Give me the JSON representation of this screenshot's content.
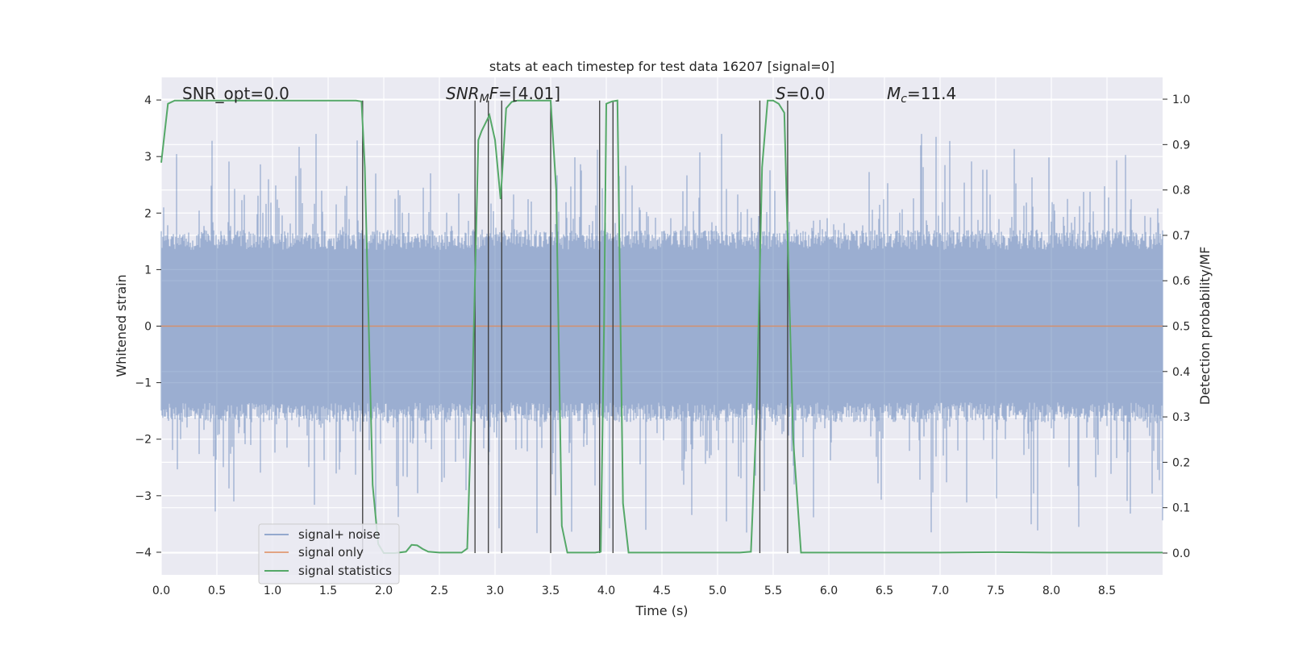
{
  "chart_data": {
    "type": "line",
    "title": "stats at each timestep for test data 16207 [signal=0]",
    "xlabel": "Time (s)",
    "ylabel": "Whitened strain",
    "y2label": "Detection probability/MF",
    "xlim": [
      0.0,
      9.0
    ],
    "ylim": [
      -4.4,
      4.4
    ],
    "y2lim": [
      -0.048,
      1.048
    ],
    "x_ticks": [
      "0.0",
      "0.5",
      "1.0",
      "1.5",
      "2.0",
      "2.5",
      "3.0",
      "3.5",
      "4.0",
      "4.5",
      "5.0",
      "5.5",
      "6.0",
      "6.5",
      "7.0",
      "7.5",
      "8.0",
      "8.5"
    ],
    "y_ticks": [
      "4",
      "3",
      "2",
      "1",
      "0",
      "−1",
      "−2",
      "−3",
      "−4"
    ],
    "y2_ticks": [
      "1.0",
      "0.9",
      "0.8",
      "0.7",
      "0.6",
      "0.5",
      "0.4",
      "0.3",
      "0.2",
      "0.1",
      "0.0"
    ],
    "grid": true,
    "legend_position": "lower-left",
    "colors": {
      "background": "#eaeaf2",
      "grid": "#ffffff",
      "noise": "#4c72b0",
      "signal": "#dd8452",
      "stats": "#55a868",
      "vlines": "#3a3a3a"
    },
    "annotations": [
      {
        "parts": [
          {
            "t": "SNR_opt=0.0",
            "i": false
          }
        ]
      },
      {
        "parts": [
          {
            "t": "SNR",
            "i": true
          },
          {
            "t": "M",
            "i": true,
            "sub": true
          },
          {
            "t": "F",
            "i": true
          },
          {
            "t": "=[4.01]",
            "i": false
          }
        ]
      },
      {
        "parts": [
          {
            "t": "S",
            "i": true
          },
          {
            "t": "=0.0",
            "i": false
          }
        ]
      },
      {
        "parts": [
          {
            "t": "M",
            "i": true
          },
          {
            "t": "c",
            "i": true,
            "sub": true
          },
          {
            "t": "=11.4",
            "i": false
          }
        ]
      }
    ],
    "series": [
      {
        "name": "signal+ noise",
        "axis": "left",
        "kind": "noise",
        "approx_range": [
          -3.7,
          3.4
        ],
        "x_range": [
          0.0,
          9.0
        ]
      },
      {
        "name": "signal only",
        "axis": "left",
        "kind": "flat",
        "x": [
          0.0,
          9.0
        ],
        "y": [
          0.0,
          0.0
        ]
      },
      {
        "name": "signal statistics",
        "axis": "right",
        "x": [
          0.0,
          0.06,
          0.12,
          0.3,
          0.6,
          1.0,
          1.5,
          1.75,
          1.8,
          1.83,
          1.9,
          1.95,
          2.0,
          2.1,
          2.2,
          2.25,
          2.3,
          2.35,
          2.4,
          2.5,
          2.6,
          2.7,
          2.75,
          2.8,
          2.85,
          2.88,
          2.95,
          3.0,
          3.05,
          3.1,
          3.15,
          3.2,
          3.3,
          3.4,
          3.5,
          3.55,
          3.6,
          3.65,
          3.7,
          3.8,
          3.9,
          3.95,
          3.98,
          4.0,
          4.05,
          4.1,
          4.15,
          4.2,
          4.3,
          4.5,
          5.0,
          5.2,
          5.3,
          5.35,
          5.4,
          5.45,
          5.5,
          5.55,
          5.6,
          5.63,
          5.68,
          5.75,
          5.85,
          6.0,
          7.0,
          7.5,
          8.0,
          9.0
        ],
        "y": [
          0.86,
          0.99,
          0.997,
          0.997,
          0.997,
          0.997,
          0.997,
          0.997,
          0.995,
          0.85,
          0.15,
          0.02,
          0.0,
          0.0,
          0.003,
          0.018,
          0.017,
          0.009,
          0.003,
          0.001,
          0.001,
          0.001,
          0.01,
          0.4,
          0.91,
          0.93,
          0.965,
          0.91,
          0.78,
          0.98,
          0.994,
          0.997,
          0.997,
          0.997,
          0.997,
          0.8,
          0.06,
          0.001,
          0.001,
          0.001,
          0.001,
          0.003,
          0.5,
          0.99,
          0.995,
          0.997,
          0.11,
          0.001,
          0.001,
          0.001,
          0.001,
          0.001,
          0.003,
          0.3,
          0.85,
          0.997,
          0.997,
          0.99,
          0.97,
          0.7,
          0.25,
          0.001,
          0.001,
          0.001,
          0.001,
          0.002,
          0.001,
          0.001
        ]
      }
    ],
    "vlines": [
      1.81,
      2.82,
      2.94,
      3.06,
      3.5,
      3.94,
      4.06,
      5.38,
      5.63
    ],
    "vline_y2_range": [
      0.0,
      0.997
    ]
  }
}
